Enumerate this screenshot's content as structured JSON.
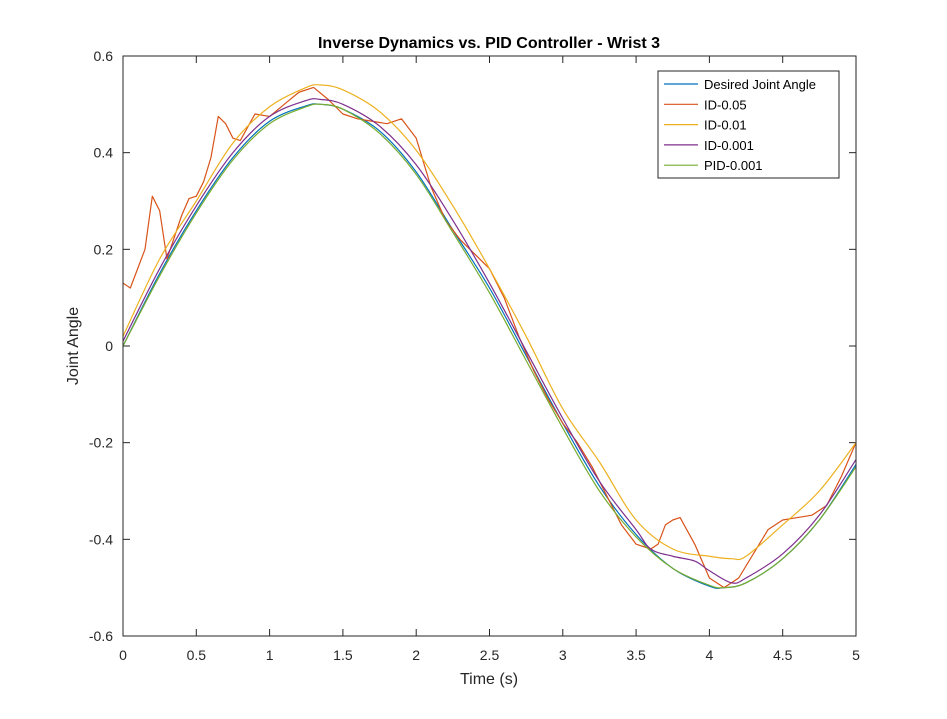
{
  "chart_data": {
    "type": "line",
    "title": "Inverse Dynamics vs. PID Controller - Wrist 3",
    "xlabel": "Time (s)",
    "ylabel": "Joint Angle",
    "xlim": [
      0,
      5
    ],
    "ylim": [
      -0.6,
      0.6
    ],
    "x_ticks": [
      "0",
      "0.5",
      "1",
      "1.5",
      "2",
      "2.5",
      "3",
      "3.5",
      "4",
      "4.5",
      "5"
    ],
    "y_ticks": [
      "-0.6",
      "-0.4",
      "-0.2",
      "0",
      "0.2",
      "0.4",
      "0.6"
    ],
    "grid": false,
    "legend_position": "top-right",
    "series": [
      {
        "name": "Desired Joint Angle",
        "color": "#0072BD",
        "points": [
          [
            0,
            0
          ],
          [
            0.25,
            0.15
          ],
          [
            0.5,
            0.28
          ],
          [
            0.75,
            0.39
          ],
          [
            1,
            0.465
          ],
          [
            1.25,
            0.497
          ],
          [
            1.35,
            0.5
          ],
          [
            1.5,
            0.49
          ],
          [
            1.75,
            0.445
          ],
          [
            2,
            0.36
          ],
          [
            2.25,
            0.24
          ],
          [
            2.5,
            0.12
          ],
          [
            2.75,
            -0.02
          ],
          [
            3,
            -0.16
          ],
          [
            3.25,
            -0.29
          ],
          [
            3.5,
            -0.39
          ],
          [
            3.75,
            -0.46
          ],
          [
            4,
            -0.497
          ],
          [
            4.1,
            -0.5
          ],
          [
            4.25,
            -0.49
          ],
          [
            4.5,
            -0.44
          ],
          [
            4.75,
            -0.36
          ],
          [
            5,
            -0.245
          ]
        ]
      },
      {
        "name": "ID-0.05",
        "color": "#D95319",
        "points": [
          [
            0,
            0.13
          ],
          [
            0.05,
            0.12
          ],
          [
            0.15,
            0.2
          ],
          [
            0.2,
            0.31
          ],
          [
            0.25,
            0.28
          ],
          [
            0.3,
            0.18
          ],
          [
            0.4,
            0.27
          ],
          [
            0.45,
            0.305
          ],
          [
            0.5,
            0.31
          ],
          [
            0.55,
            0.34
          ],
          [
            0.6,
            0.39
          ],
          [
            0.65,
            0.475
          ],
          [
            0.7,
            0.46
          ],
          [
            0.75,
            0.43
          ],
          [
            0.8,
            0.425
          ],
          [
            0.9,
            0.48
          ],
          [
            1,
            0.475
          ],
          [
            1.1,
            0.5
          ],
          [
            1.2,
            0.525
          ],
          [
            1.3,
            0.535
          ],
          [
            1.4,
            0.51
          ],
          [
            1.5,
            0.48
          ],
          [
            1.6,
            0.47
          ],
          [
            1.7,
            0.465
          ],
          [
            1.8,
            0.46
          ],
          [
            1.9,
            0.47
          ],
          [
            2,
            0.43
          ],
          [
            2.1,
            0.33
          ],
          [
            2.2,
            0.26
          ],
          [
            2.3,
            0.22
          ],
          [
            2.4,
            0.19
          ],
          [
            2.5,
            0.16
          ],
          [
            2.6,
            0.1
          ],
          [
            2.7,
            0.02
          ],
          [
            2.8,
            -0.05
          ],
          [
            2.9,
            -0.11
          ],
          [
            3,
            -0.16
          ],
          [
            3.1,
            -0.2
          ],
          [
            3.2,
            -0.25
          ],
          [
            3.3,
            -0.31
          ],
          [
            3.4,
            -0.37
          ],
          [
            3.5,
            -0.41
          ],
          [
            3.6,
            -0.42
          ],
          [
            3.65,
            -0.41
          ],
          [
            3.7,
            -0.37
          ],
          [
            3.75,
            -0.36
          ],
          [
            3.8,
            -0.355
          ],
          [
            3.9,
            -0.41
          ],
          [
            4,
            -0.48
          ],
          [
            4.1,
            -0.5
          ],
          [
            4.2,
            -0.48
          ],
          [
            4.3,
            -0.43
          ],
          [
            4.4,
            -0.38
          ],
          [
            4.5,
            -0.36
          ],
          [
            4.6,
            -0.355
          ],
          [
            4.7,
            -0.35
          ],
          [
            4.8,
            -0.33
          ],
          [
            4.9,
            -0.27
          ],
          [
            5,
            -0.2
          ]
        ]
      },
      {
        "name": "ID-0.01",
        "color": "#EDB120",
        "points": [
          [
            0,
            0.02
          ],
          [
            0.25,
            0.18
          ],
          [
            0.5,
            0.3
          ],
          [
            0.75,
            0.42
          ],
          [
            1,
            0.495
          ],
          [
            1.25,
            0.535
          ],
          [
            1.35,
            0.54
          ],
          [
            1.5,
            0.53
          ],
          [
            1.75,
            0.485
          ],
          [
            2,
            0.405
          ],
          [
            2.25,
            0.29
          ],
          [
            2.5,
            0.16
          ],
          [
            2.75,
            0.02
          ],
          [
            3,
            -0.13
          ],
          [
            3.25,
            -0.24
          ],
          [
            3.5,
            -0.36
          ],
          [
            3.75,
            -0.42
          ],
          [
            4,
            -0.435
          ],
          [
            4.15,
            -0.44
          ],
          [
            4.25,
            -0.435
          ],
          [
            4.5,
            -0.37
          ],
          [
            4.75,
            -0.3
          ],
          [
            5,
            -0.2
          ]
        ]
      },
      {
        "name": "ID-0.001",
        "color": "#7E2F8E",
        "points": [
          [
            0,
            0.01
          ],
          [
            0.25,
            0.16
          ],
          [
            0.5,
            0.29
          ],
          [
            0.75,
            0.4
          ],
          [
            1,
            0.475
          ],
          [
            1.25,
            0.508
          ],
          [
            1.35,
            0.51
          ],
          [
            1.5,
            0.5
          ],
          [
            1.75,
            0.455
          ],
          [
            2,
            0.375
          ],
          [
            2.25,
            0.26
          ],
          [
            2.5,
            0.13
          ],
          [
            2.75,
            -0.01
          ],
          [
            3,
            -0.15
          ],
          [
            3.25,
            -0.28
          ],
          [
            3.5,
            -0.38
          ],
          [
            3.6,
            -0.42
          ],
          [
            3.75,
            -0.435
          ],
          [
            3.9,
            -0.445
          ],
          [
            4,
            -0.465
          ],
          [
            4.15,
            -0.49
          ],
          [
            4.25,
            -0.48
          ],
          [
            4.5,
            -0.43
          ],
          [
            4.75,
            -0.35
          ],
          [
            5,
            -0.235
          ]
        ]
      },
      {
        "name": "PID-0.001",
        "color": "#77AC30",
        "points": [
          [
            0,
            0
          ],
          [
            0.25,
            0.145
          ],
          [
            0.5,
            0.275
          ],
          [
            0.75,
            0.385
          ],
          [
            1,
            0.46
          ],
          [
            1.25,
            0.495
          ],
          [
            1.35,
            0.5
          ],
          [
            1.5,
            0.49
          ],
          [
            1.75,
            0.44
          ],
          [
            2,
            0.355
          ],
          [
            2.25,
            0.235
          ],
          [
            2.5,
            0.11
          ],
          [
            2.75,
            -0.03
          ],
          [
            3,
            -0.17
          ],
          [
            3.25,
            -0.3
          ],
          [
            3.5,
            -0.395
          ],
          [
            3.75,
            -0.46
          ],
          [
            4,
            -0.495
          ],
          [
            4.1,
            -0.5
          ],
          [
            4.25,
            -0.49
          ],
          [
            4.5,
            -0.44
          ],
          [
            4.75,
            -0.36
          ],
          [
            5,
            -0.25
          ]
        ]
      }
    ]
  }
}
